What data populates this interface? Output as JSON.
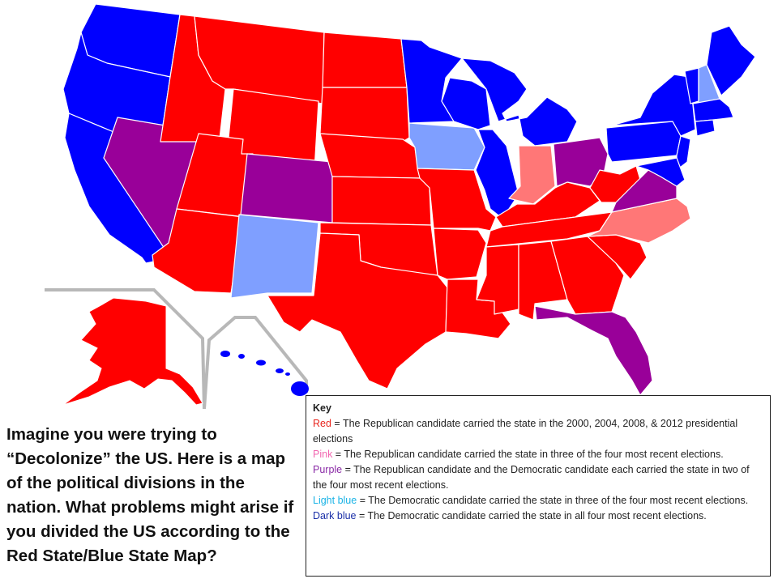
{
  "colors": {
    "red": "#ff0000",
    "pink": "#ff7777",
    "purple": "#990099",
    "light_blue": "#7f9fff",
    "dark_blue": "#0000ff"
  },
  "prompt": "Imagine you were trying to “Decolonize” the US. Here is a map of the political divisions in the nation. What problems might arise if you divided the US according to the Red State/Blue State Map?",
  "key": {
    "title": "Key",
    "entries": [
      {
        "term": "Red",
        "desc": " = The Republican candidate carried the state in the 2000, 2004, 2008, & 2012 presidential elections"
      },
      {
        "term": "Pink",
        "desc": " = The Republican candidate carried the state in three of the four most recent elections."
      },
      {
        "term": "Purple",
        "desc": " = The Republican candidate and the Democratic candidate each carried the state in two of the four most recent elections."
      },
      {
        "term": "Light blue",
        "desc": " = The Democratic candidate carried the state in three of the four most recent elections."
      },
      {
        "term": "Dark blue",
        "desc": " = The Democratic candidate carried the state in all four most recent elections."
      }
    ]
  }
}
